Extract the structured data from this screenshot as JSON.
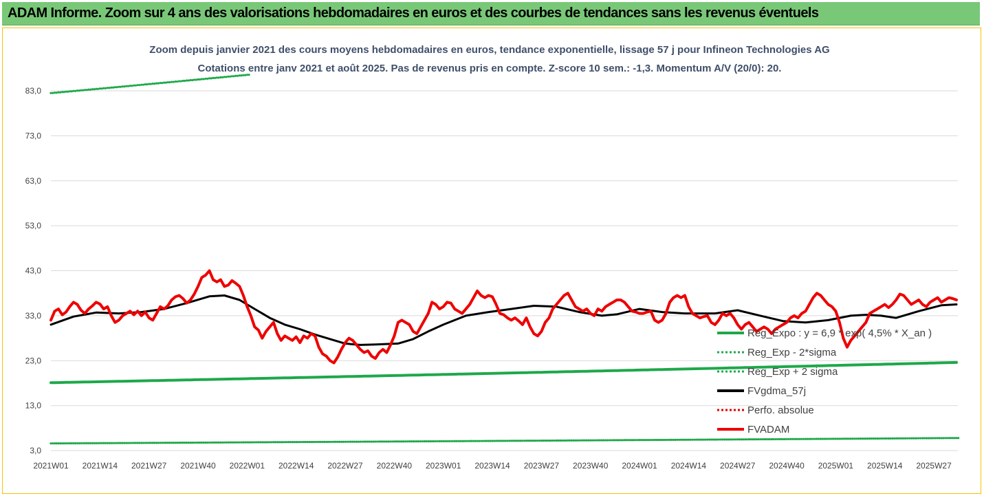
{
  "banner": {
    "title": "ADAM Informe. Zoom sur 4 ans des valorisations hebdomadaires en euros et des courbes de tendances sans les revenus éventuels"
  },
  "chart_data": {
    "type": "line",
    "title": "Zoom depuis janvier 2021 des cours moyens hebdomadaires en euros, tendance exponentielle, lissage 57 j pour Infineon Technologies AG",
    "subtitle": "Cotations entre janv 2021 et août 2025.  Pas de revenus pris en compte. Z-score 10 sem.: -1,3. Momentum A/V (20/0): 20.",
    "ylim": [
      3,
      96
    ],
    "yticks": [
      "3,0",
      "13,0",
      "23,0",
      "33,0",
      "43,0",
      "53,0",
      "63,0",
      "73,0",
      "83,0"
    ],
    "x_count": 241,
    "xticks": [
      {
        "i": 0,
        "label": "2021W01"
      },
      {
        "i": 13,
        "label": "2021W14"
      },
      {
        "i": 26,
        "label": "2021W27"
      },
      {
        "i": 39,
        "label": "2021W40"
      },
      {
        "i": 52,
        "label": "2022W01"
      },
      {
        "i": 65,
        "label": "2022W14"
      },
      {
        "i": 78,
        "label": "2022W27"
      },
      {
        "i": 91,
        "label": "2022W40"
      },
      {
        "i": 104,
        "label": "2023W01"
      },
      {
        "i": 117,
        "label": "2023W14"
      },
      {
        "i": 130,
        "label": "2023W27"
      },
      {
        "i": 143,
        "label": "2023W40"
      },
      {
        "i": 156,
        "label": "2024W01"
      },
      {
        "i": 169,
        "label": "2024W14"
      },
      {
        "i": 182,
        "label": "2024W27"
      },
      {
        "i": 195,
        "label": "2024W40"
      },
      {
        "i": 208,
        "label": "2025W01"
      },
      {
        "i": 221,
        "label": "2025W14"
      },
      {
        "i": 234,
        "label": "2025W27"
      }
    ],
    "series": [
      {
        "name": "Reg_Expo : y = 6,9 * exp( 4,5% * X_an )",
        "color": "#1ea84a",
        "style": "solid",
        "points": [
          [
            0,
            18.1
          ],
          [
            240,
            22.6
          ]
        ]
      },
      {
        "name": "Reg_Exp - 2*sigma",
        "color": "#1ea84a",
        "style": "dotted",
        "points": [
          [
            0,
            4.6
          ],
          [
            240,
            5.8
          ]
        ]
      },
      {
        "name": "Reg_Exp + 2 sigma",
        "color": "#1ea84a",
        "style": "dotted",
        "points": [
          [
            0,
            82.5
          ],
          [
            240,
            103.0
          ]
        ]
      },
      {
        "name": "FVgdma_57j",
        "color": "#000000",
        "style": "solid",
        "points": [
          [
            0,
            31.0
          ],
          [
            6,
            32.8
          ],
          [
            12,
            33.7
          ],
          [
            18,
            33.5
          ],
          [
            24,
            33.8
          ],
          [
            30,
            34.5
          ],
          [
            36,
            35.8
          ],
          [
            42,
            37.3
          ],
          [
            46,
            37.5
          ],
          [
            50,
            36.5
          ],
          [
            54,
            34.5
          ],
          [
            58,
            32.5
          ],
          [
            62,
            31.0
          ],
          [
            66,
            30.0
          ],
          [
            70,
            28.8
          ],
          [
            74,
            27.8
          ],
          [
            78,
            26.8
          ],
          [
            82,
            26.5
          ],
          [
            86,
            26.6
          ],
          [
            92,
            26.8
          ],
          [
            96,
            27.8
          ],
          [
            100,
            29.5
          ],
          [
            104,
            31.0
          ],
          [
            110,
            33.0
          ],
          [
            116,
            33.8
          ],
          [
            122,
            34.5
          ],
          [
            128,
            35.2
          ],
          [
            134,
            35.0
          ],
          [
            140,
            33.8
          ],
          [
            146,
            33.0
          ],
          [
            150,
            33.3
          ],
          [
            156,
            34.5
          ],
          [
            162,
            33.8
          ],
          [
            168,
            33.5
          ],
          [
            176,
            33.5
          ],
          [
            182,
            34.2
          ],
          [
            188,
            33.0
          ],
          [
            194,
            31.8
          ],
          [
            200,
            31.5
          ],
          [
            206,
            32.0
          ],
          [
            212,
            33.0
          ],
          [
            216,
            33.2
          ],
          [
            220,
            33.0
          ],
          [
            224,
            32.5
          ],
          [
            230,
            34.0
          ],
          [
            236,
            35.3
          ],
          [
            240,
            35.5
          ]
        ]
      },
      {
        "name": "Perfo. absolue",
        "color": "#e00000",
        "style": "dotted",
        "points": []
      },
      {
        "name": "FVADAM",
        "color": "#ee0000",
        "style": "solid",
        "points": [
          [
            0,
            32.0
          ],
          [
            1,
            34.0
          ],
          [
            2,
            34.5
          ],
          [
            3,
            33.2
          ],
          [
            4,
            33.8
          ],
          [
            5,
            35.0
          ],
          [
            6,
            36.0
          ],
          [
            7,
            35.5
          ],
          [
            8,
            34.2
          ],
          [
            9,
            33.5
          ],
          [
            10,
            34.5
          ],
          [
            11,
            35.2
          ],
          [
            12,
            36.0
          ],
          [
            13,
            35.6
          ],
          [
            14,
            34.5
          ],
          [
            15,
            35.0
          ],
          [
            16,
            33.0
          ],
          [
            17,
            31.5
          ],
          [
            18,
            32.0
          ],
          [
            19,
            33.0
          ],
          [
            20,
            33.5
          ],
          [
            21,
            34.0
          ],
          [
            22,
            33.2
          ],
          [
            23,
            34.0
          ],
          [
            24,
            33.0
          ],
          [
            25,
            33.8
          ],
          [
            26,
            32.5
          ],
          [
            27,
            32.0
          ],
          [
            28,
            33.5
          ],
          [
            29,
            35.0
          ],
          [
            30,
            34.5
          ],
          [
            31,
            35.2
          ],
          [
            32,
            36.5
          ],
          [
            33,
            37.2
          ],
          [
            34,
            37.5
          ],
          [
            35,
            36.8
          ],
          [
            36,
            35.8
          ],
          [
            37,
            36.5
          ],
          [
            38,
            37.8
          ],
          [
            39,
            39.5
          ],
          [
            40,
            41.5
          ],
          [
            41,
            42.0
          ],
          [
            42,
            43.0
          ],
          [
            43,
            41.0
          ],
          [
            44,
            40.5
          ],
          [
            45,
            41.0
          ],
          [
            46,
            39.5
          ],
          [
            47,
            39.8
          ],
          [
            48,
            40.8
          ],
          [
            49,
            40.2
          ],
          [
            50,
            39.5
          ],
          [
            51,
            37.5
          ],
          [
            52,
            35.0
          ],
          [
            53,
            33.0
          ],
          [
            54,
            30.5
          ],
          [
            55,
            29.8
          ],
          [
            56,
            28.0
          ],
          [
            57,
            29.5
          ],
          [
            58,
            30.5
          ],
          [
            59,
            31.5
          ],
          [
            60,
            29.0
          ],
          [
            61,
            27.5
          ],
          [
            62,
            28.5
          ],
          [
            63,
            28.0
          ],
          [
            64,
            27.5
          ],
          [
            65,
            28.3
          ],
          [
            66,
            27.0
          ],
          [
            67,
            28.5
          ],
          [
            68,
            28.0
          ],
          [
            69,
            29.0
          ],
          [
            70,
            28.5
          ],
          [
            71,
            26.0
          ],
          [
            72,
            24.5
          ],
          [
            73,
            24.0
          ],
          [
            74,
            23.0
          ],
          [
            75,
            22.5
          ],
          [
            76,
            23.8
          ],
          [
            77,
            25.5
          ],
          [
            78,
            27.0
          ],
          [
            79,
            28.0
          ],
          [
            80,
            27.5
          ],
          [
            81,
            26.5
          ],
          [
            82,
            25.5
          ],
          [
            83,
            24.8
          ],
          [
            84,
            25.2
          ],
          [
            85,
            24.0
          ],
          [
            86,
            23.5
          ],
          [
            87,
            24.8
          ],
          [
            88,
            25.5
          ],
          [
            89,
            24.8
          ],
          [
            90,
            26.5
          ],
          [
            91,
            28.5
          ],
          [
            92,
            31.5
          ],
          [
            93,
            32.0
          ],
          [
            94,
            31.5
          ],
          [
            95,
            31.0
          ],
          [
            96,
            29.5
          ],
          [
            97,
            29.0
          ],
          [
            98,
            30.5
          ],
          [
            99,
            32.0
          ],
          [
            100,
            33.5
          ],
          [
            101,
            36.0
          ],
          [
            102,
            35.5
          ],
          [
            103,
            34.5
          ],
          [
            104,
            35.0
          ],
          [
            105,
            36.0
          ],
          [
            106,
            35.8
          ],
          [
            107,
            34.5
          ],
          [
            108,
            34.0
          ],
          [
            109,
            33.5
          ],
          [
            110,
            34.5
          ],
          [
            111,
            35.5
          ],
          [
            112,
            37.0
          ],
          [
            113,
            38.5
          ],
          [
            114,
            37.5
          ],
          [
            115,
            37.0
          ],
          [
            116,
            37.5
          ],
          [
            117,
            37.2
          ],
          [
            118,
            35.5
          ],
          [
            119,
            33.5
          ],
          [
            120,
            33.2
          ],
          [
            121,
            32.5
          ],
          [
            122,
            32.0
          ],
          [
            123,
            32.5
          ],
          [
            124,
            31.8
          ],
          [
            125,
            31.0
          ],
          [
            126,
            32.5
          ],
          [
            127,
            30.5
          ],
          [
            128,
            29.0
          ],
          [
            129,
            28.5
          ],
          [
            130,
            29.5
          ],
          [
            131,
            31.5
          ],
          [
            132,
            32.5
          ],
          [
            133,
            34.5
          ],
          [
            134,
            35.5
          ],
          [
            135,
            36.5
          ],
          [
            136,
            37.5
          ],
          [
            137,
            38.0
          ],
          [
            138,
            36.5
          ],
          [
            139,
            35.0
          ],
          [
            140,
            34.5
          ],
          [
            141,
            34.0
          ],
          [
            142,
            34.5
          ],
          [
            143,
            33.5
          ],
          [
            144,
            33.0
          ],
          [
            145,
            34.5
          ],
          [
            146,
            34.0
          ],
          [
            147,
            35.0
          ],
          [
            148,
            35.5
          ],
          [
            149,
            36.0
          ],
          [
            150,
            36.5
          ],
          [
            151,
            36.5
          ],
          [
            152,
            36.0
          ],
          [
            153,
            35.0
          ],
          [
            154,
            34.0
          ],
          [
            155,
            33.8
          ],
          [
            156,
            33.5
          ],
          [
            157,
            33.5
          ],
          [
            158,
            33.8
          ],
          [
            159,
            34.0
          ],
          [
            160,
            32.0
          ],
          [
            161,
            31.5
          ],
          [
            162,
            32.0
          ],
          [
            163,
            33.5
          ],
          [
            164,
            36.0
          ],
          [
            165,
            37.0
          ],
          [
            166,
            37.5
          ],
          [
            167,
            37.0
          ],
          [
            168,
            37.5
          ],
          [
            169,
            35.0
          ],
          [
            170,
            33.5
          ],
          [
            171,
            33.0
          ],
          [
            172,
            32.5
          ],
          [
            173,
            32.8
          ],
          [
            174,
            33.0
          ],
          [
            175,
            31.5
          ],
          [
            176,
            31.0
          ],
          [
            177,
            32.0
          ],
          [
            178,
            33.5
          ],
          [
            179,
            33.0
          ],
          [
            180,
            33.5
          ],
          [
            181,
            32.5
          ],
          [
            182,
            31.0
          ],
          [
            183,
            30.0
          ],
          [
            184,
            31.0
          ],
          [
            185,
            31.5
          ],
          [
            186,
            30.5
          ],
          [
            187,
            29.5
          ],
          [
            188,
            30.0
          ],
          [
            189,
            30.5
          ],
          [
            190,
            30.0
          ],
          [
            191,
            29.0
          ],
          [
            192,
            30.0
          ],
          [
            193,
            30.5
          ],
          [
            194,
            31.0
          ],
          [
            195,
            31.5
          ],
          [
            196,
            32.5
          ],
          [
            197,
            33.0
          ],
          [
            198,
            32.5
          ],
          [
            199,
            33.5
          ],
          [
            200,
            34.0
          ],
          [
            201,
            35.5
          ],
          [
            202,
            37.0
          ],
          [
            203,
            38.0
          ],
          [
            204,
            37.5
          ],
          [
            205,
            36.5
          ],
          [
            206,
            35.5
          ],
          [
            207,
            35.0
          ],
          [
            208,
            34.0
          ],
          [
            209,
            31.5
          ],
          [
            210,
            28.0
          ],
          [
            211,
            26.0
          ],
          [
            212,
            27.5
          ],
          [
            213,
            28.5
          ],
          [
            214,
            29.5
          ],
          [
            215,
            30.5
          ],
          [
            216,
            31.5
          ],
          [
            217,
            33.5
          ],
          [
            218,
            34.0
          ],
          [
            219,
            34.5
          ],
          [
            220,
            35.0
          ],
          [
            221,
            35.5
          ],
          [
            222,
            34.8
          ],
          [
            223,
            35.5
          ],
          [
            224,
            36.5
          ],
          [
            225,
            37.8
          ],
          [
            226,
            37.5
          ],
          [
            227,
            36.5
          ],
          [
            228,
            35.5
          ],
          [
            229,
            36.0
          ],
          [
            230,
            36.5
          ],
          [
            231,
            35.5
          ],
          [
            232,
            35.0
          ],
          [
            233,
            36.0
          ],
          [
            234,
            36.5
          ],
          [
            235,
            37.0
          ],
          [
            236,
            36.0
          ],
          [
            237,
            36.5
          ],
          [
            238,
            37.0
          ],
          [
            239,
            36.8
          ],
          [
            240,
            36.5
          ]
        ]
      }
    ],
    "grid": "horizontal",
    "legend": "inside-right"
  }
}
